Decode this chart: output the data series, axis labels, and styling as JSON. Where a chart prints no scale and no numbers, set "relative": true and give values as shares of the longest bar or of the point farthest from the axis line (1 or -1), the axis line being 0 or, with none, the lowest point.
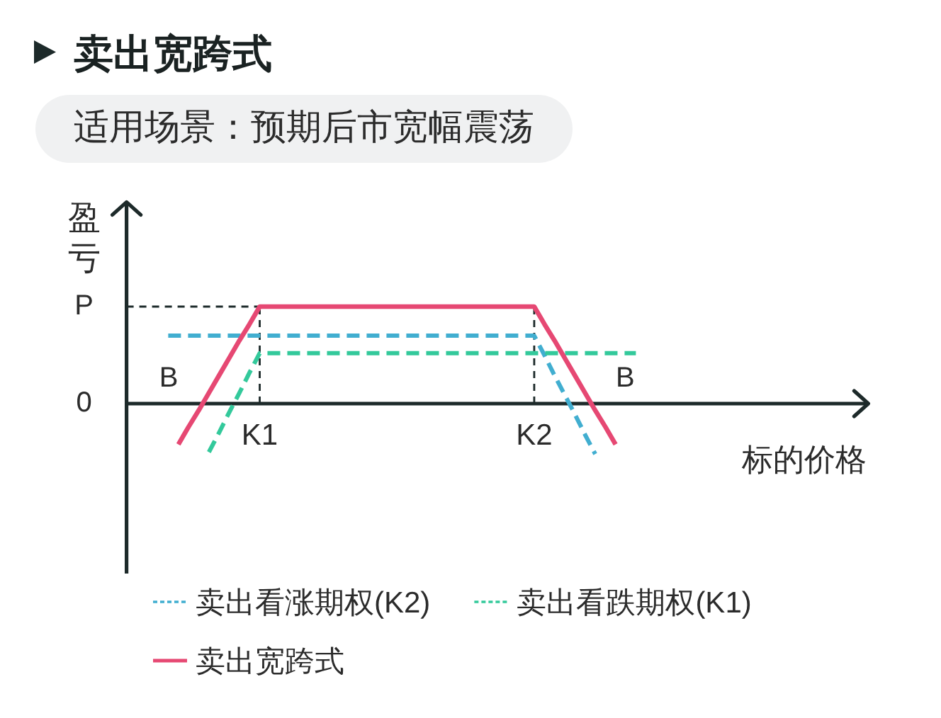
{
  "chart_data": {
    "type": "line",
    "title": "卖出宽跨式",
    "subtitle": "适用场景：预期后市宽幅震荡",
    "xlabel": "标的价格",
    "ylabel": "盈亏",
    "relative": true,
    "categories": [
      null,
      null,
      null,
      null,
      null,
      null,
      null,
      null,
      null,
      "K1",
      null,
      null,
      null,
      null,
      null,
      null,
      null,
      null,
      null,
      null,
      null,
      null,
      null,
      null,
      null,
      null,
      null,
      null,
      null,
      null,
      null,
      null,
      null,
      null,
      null,
      null,
      "K2",
      null,
      null,
      null,
      null,
      null,
      null,
      null,
      null,
      null,
      null
    ],
    "series": [
      {
        "name": "卖出看涨期权(K2)",
        "color": "#41aed0",
        "line_style": "dashed",
        "values": [
          0.7,
          0.7,
          0.7,
          0.7,
          0.7,
          0.7,
          0.7,
          0.7,
          0.7,
          0.7,
          0.7,
          0.7,
          0.7,
          0.7,
          0.7,
          0.7,
          0.7,
          0.7,
          0.7,
          0.7,
          0.7,
          0.7,
          0.7,
          0.7,
          0.7,
          0.7,
          0.7,
          0.7,
          0.7,
          0.7,
          0.7,
          0.7,
          0.7,
          0.7,
          0.7,
          0.7,
          0.7,
          0.5,
          0.29,
          0.09,
          -0.11,
          -0.32,
          -0.52,
          null,
          null,
          null,
          null
        ]
      },
      {
        "name": "卖出看跌期权(K1)",
        "color": "#33c99b",
        "line_style": "dashed",
        "values": [
          null,
          null,
          null,
          null,
          -0.5,
          -0.3,
          -0.09,
          0.11,
          0.32,
          0.52,
          0.52,
          0.52,
          0.52,
          0.52,
          0.52,
          0.52,
          0.52,
          0.52,
          0.52,
          0.52,
          0.52,
          0.52,
          0.52,
          0.52,
          0.52,
          0.52,
          0.52,
          0.52,
          0.52,
          0.52,
          0.52,
          0.52,
          0.52,
          0.52,
          0.52,
          0.52,
          0.52,
          0.52,
          0.52,
          0.52,
          0.52,
          0.52,
          0.52,
          0.52,
          0.52,
          0.52,
          0.52
        ]
      },
      {
        "name": "卖出宽跨式",
        "color": "#e64873",
        "line_style": "solid",
        "values": [
          null,
          -0.42,
          -0.24,
          -0.07,
          0.11,
          0.29,
          0.47,
          0.65,
          0.82,
          1,
          1,
          1,
          1,
          1,
          1,
          1,
          1,
          1,
          1,
          1,
          1,
          1,
          1,
          1,
          1,
          1,
          1,
          1,
          1,
          1,
          1,
          1,
          1,
          1,
          1,
          1,
          1,
          0.82,
          0.65,
          0.47,
          0.29,
          0.11,
          -0.07,
          -0.24,
          -0.42,
          null,
          null
        ]
      }
    ],
    "ref_lines": [
      {
        "axis": "y",
        "value": 1,
        "label": "P",
        "color": "#1d2a2a",
        "line_style": "dashed"
      },
      {
        "axis": "x",
        "value": "K1",
        "color": "#1d2a2a",
        "line_style": "dashed"
      },
      {
        "axis": "x",
        "value": "K2",
        "color": "#1d2a2a",
        "line_style": "dashed"
      }
    ],
    "annotations": [
      "0",
      "B",
      "B"
    ],
    "legend": "bottom"
  }
}
